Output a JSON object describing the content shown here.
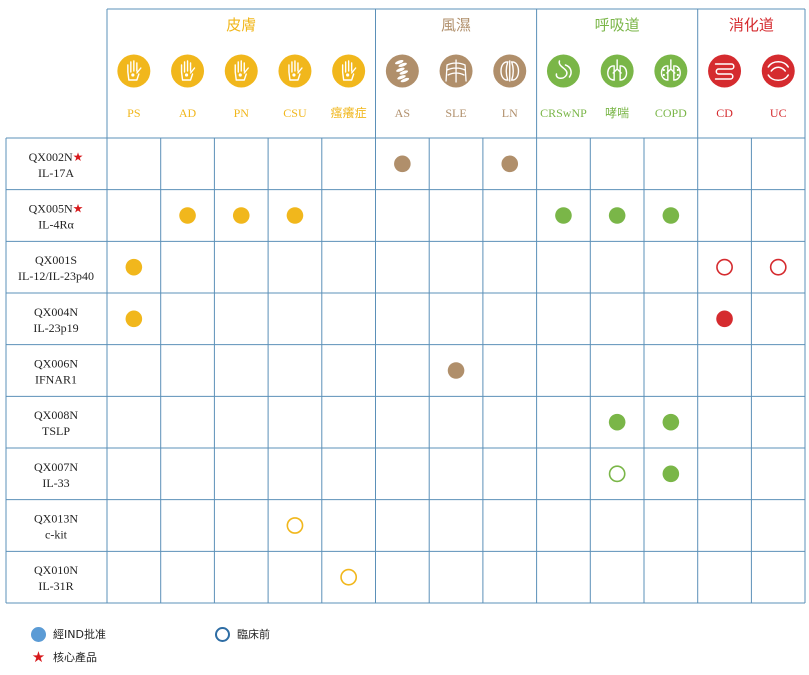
{
  "colors": {
    "grid": "#5b90b8",
    "皮膚": "#f1b71c",
    "風濕": "#b08f6b",
    "呼吸道": "#7ab648",
    "消化道": "#d52b2f",
    "star": "#d7191c",
    "legend_approved": "#5b9bd5",
    "legend_preclinical": "#2e6da4"
  },
  "chart_data": {
    "type": "table",
    "categories": [
      {
        "name": "皮膚",
        "icon": "hand-icon",
        "diseases": [
          "PS",
          "AD",
          "PN",
          "CSU",
          "瘙癢症"
        ]
      },
      {
        "name": "風濕",
        "icon": "spine-joint-icon",
        "diseases": [
          "AS",
          "SLE",
          "LN"
        ]
      },
      {
        "name": "呼吸道",
        "icon": "lungs-icon",
        "diseases": [
          "CRSwNP",
          "哮喘",
          "COPD"
        ]
      },
      {
        "name": "消化道",
        "icon": "intestine-icon",
        "diseases": [
          "CD",
          "UC"
        ]
      }
    ],
    "rows": [
      {
        "code": "QX002N",
        "star": true,
        "target": "IL-17A"
      },
      {
        "code": "QX005N",
        "star": true,
        "target": "IL-4Rα"
      },
      {
        "code": "QX001S",
        "star": false,
        "target": "IL-12/IL-23p40"
      },
      {
        "code": "QX004N",
        "star": false,
        "target": "IL-23p19"
      },
      {
        "code": "QX006N",
        "star": false,
        "target": "IFNAR1"
      },
      {
        "code": "QX008N",
        "star": false,
        "target": "TSLP"
      },
      {
        "code": "QX007N",
        "star": false,
        "target": "IL-33"
      },
      {
        "code": "QX013N",
        "star": false,
        "target": "c-kit"
      },
      {
        "code": "QX010N",
        "star": false,
        "target": "IL-31R"
      }
    ],
    "marks": [
      {
        "row": 0,
        "disease": "AS",
        "status": "approved"
      },
      {
        "row": 0,
        "disease": "LN",
        "status": "approved"
      },
      {
        "row": 1,
        "disease": "AD",
        "status": "approved"
      },
      {
        "row": 1,
        "disease": "PN",
        "status": "approved"
      },
      {
        "row": 1,
        "disease": "CSU",
        "status": "approved"
      },
      {
        "row": 1,
        "disease": "CRSwNP",
        "status": "approved"
      },
      {
        "row": 1,
        "disease": "哮喘",
        "status": "approved"
      },
      {
        "row": 1,
        "disease": "COPD",
        "status": "approved"
      },
      {
        "row": 2,
        "disease": "PS",
        "status": "approved"
      },
      {
        "row": 2,
        "disease": "CD",
        "status": "preclinical"
      },
      {
        "row": 2,
        "disease": "UC",
        "status": "preclinical"
      },
      {
        "row": 3,
        "disease": "PS",
        "status": "approved"
      },
      {
        "row": 3,
        "disease": "CD",
        "status": "approved"
      },
      {
        "row": 4,
        "disease": "SLE",
        "status": "approved"
      },
      {
        "row": 5,
        "disease": "哮喘",
        "status": "approved"
      },
      {
        "row": 5,
        "disease": "COPD",
        "status": "approved"
      },
      {
        "row": 6,
        "disease": "哮喘",
        "status": "preclinical"
      },
      {
        "row": 6,
        "disease": "COPD",
        "status": "approved"
      },
      {
        "row": 7,
        "disease": "CSU",
        "status": "preclinical"
      },
      {
        "row": 8,
        "disease": "瘙癢症",
        "status": "preclinical"
      }
    ]
  },
  "legend": {
    "approved": "經IND批准",
    "preclinical": "臨床前",
    "star": "★",
    "core": "核心產品"
  }
}
